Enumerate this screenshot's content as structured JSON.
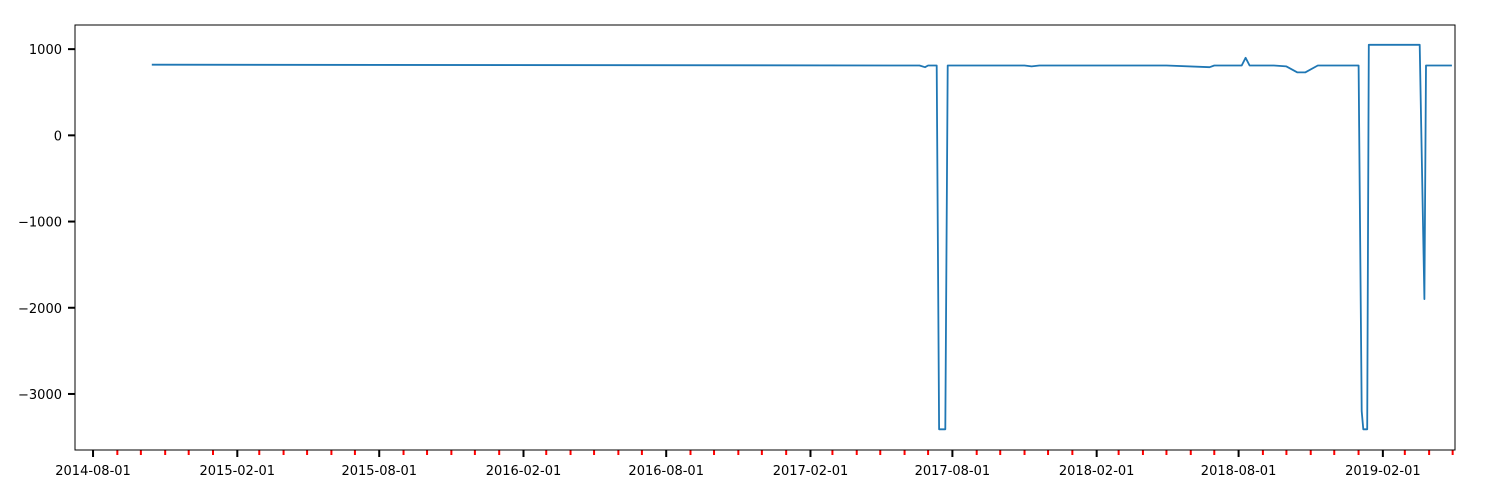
{
  "chart_data": {
    "type": "line",
    "title": "",
    "xlabel": "",
    "ylabel": "",
    "grid": false,
    "legend": false,
    "xlim": [
      "2014-07-09",
      "2019-05-04"
    ],
    "ylim": [
      -3650,
      1280
    ],
    "x_ticks": [
      "2014-08-01",
      "2015-02-01",
      "2015-08-01",
      "2016-02-01",
      "2016-08-01",
      "2017-02-01",
      "2017-08-01",
      "2018-02-01",
      "2018-08-01",
      "2019-02-01"
    ],
    "x_minor_ticks": [
      "2014-09-01",
      "2014-10-01",
      "2014-11-01",
      "2014-12-01",
      "2015-01-01",
      "2015-03-01",
      "2015-04-01",
      "2015-05-01",
      "2015-06-01",
      "2015-07-01",
      "2015-09-01",
      "2015-10-01",
      "2015-11-01",
      "2015-12-01",
      "2016-01-01",
      "2016-03-01",
      "2016-04-01",
      "2016-05-01",
      "2016-06-01",
      "2016-07-01",
      "2016-09-01",
      "2016-10-01",
      "2016-11-01",
      "2016-12-01",
      "2017-01-01",
      "2017-03-01",
      "2017-04-01",
      "2017-05-01",
      "2017-06-01",
      "2017-07-01",
      "2017-09-01",
      "2017-10-01",
      "2017-11-01",
      "2017-12-01",
      "2018-01-01",
      "2018-03-01",
      "2018-04-01",
      "2018-05-01",
      "2018-06-01",
      "2018-07-01",
      "2018-09-01",
      "2018-10-01",
      "2018-11-01",
      "2018-12-01",
      "2019-01-01",
      "2019-03-01",
      "2019-04-01",
      "2019-05-01"
    ],
    "y_ticks": [
      1000,
      0,
      -1000,
      -2000,
      -3000
    ],
    "y_tick_labels": [
      "1000",
      "0",
      "−1000",
      "−2000",
      "−3000"
    ],
    "colors": {
      "line": "#1f77b4",
      "major_tick": "#000000",
      "minor_tick": "#ff0000"
    },
    "series": [
      {
        "x": [
          "2014-10-15",
          "2017-06-20",
          "2017-06-27",
          "2017-07-01",
          "2017-07-08",
          "2017-07-12",
          "2017-07-15",
          "2017-07-23",
          "2017-07-26",
          "2017-09-01",
          "2017-11-01",
          "2017-11-10",
          "2017-11-20",
          "2017-12-01",
          "2018-05-01",
          "2018-06-25",
          "2018-07-01",
          "2018-07-15",
          "2018-08-05",
          "2018-08-10",
          "2018-08-15",
          "2018-09-15",
          "2018-10-01",
          "2018-10-15",
          "2018-10-25",
          "2018-11-10",
          "2019-01-01",
          "2019-01-05",
          "2019-01-07",
          "2019-01-12",
          "2019-01-14",
          "2019-01-20",
          "2019-03-20",
          "2019-03-26",
          "2019-03-28",
          "2019-04-03",
          "2019-04-30"
        ],
        "y": [
          820,
          810,
          790,
          810,
          810,
          810,
          -3410,
          -3410,
          810,
          810,
          810,
          800,
          810,
          810,
          810,
          790,
          810,
          810,
          810,
          900,
          810,
          810,
          800,
          730,
          730,
          810,
          810,
          -3200,
          -3410,
          -3410,
          1050,
          1050,
          1050,
          -1900,
          810,
          810,
          810
        ]
      }
    ]
  }
}
